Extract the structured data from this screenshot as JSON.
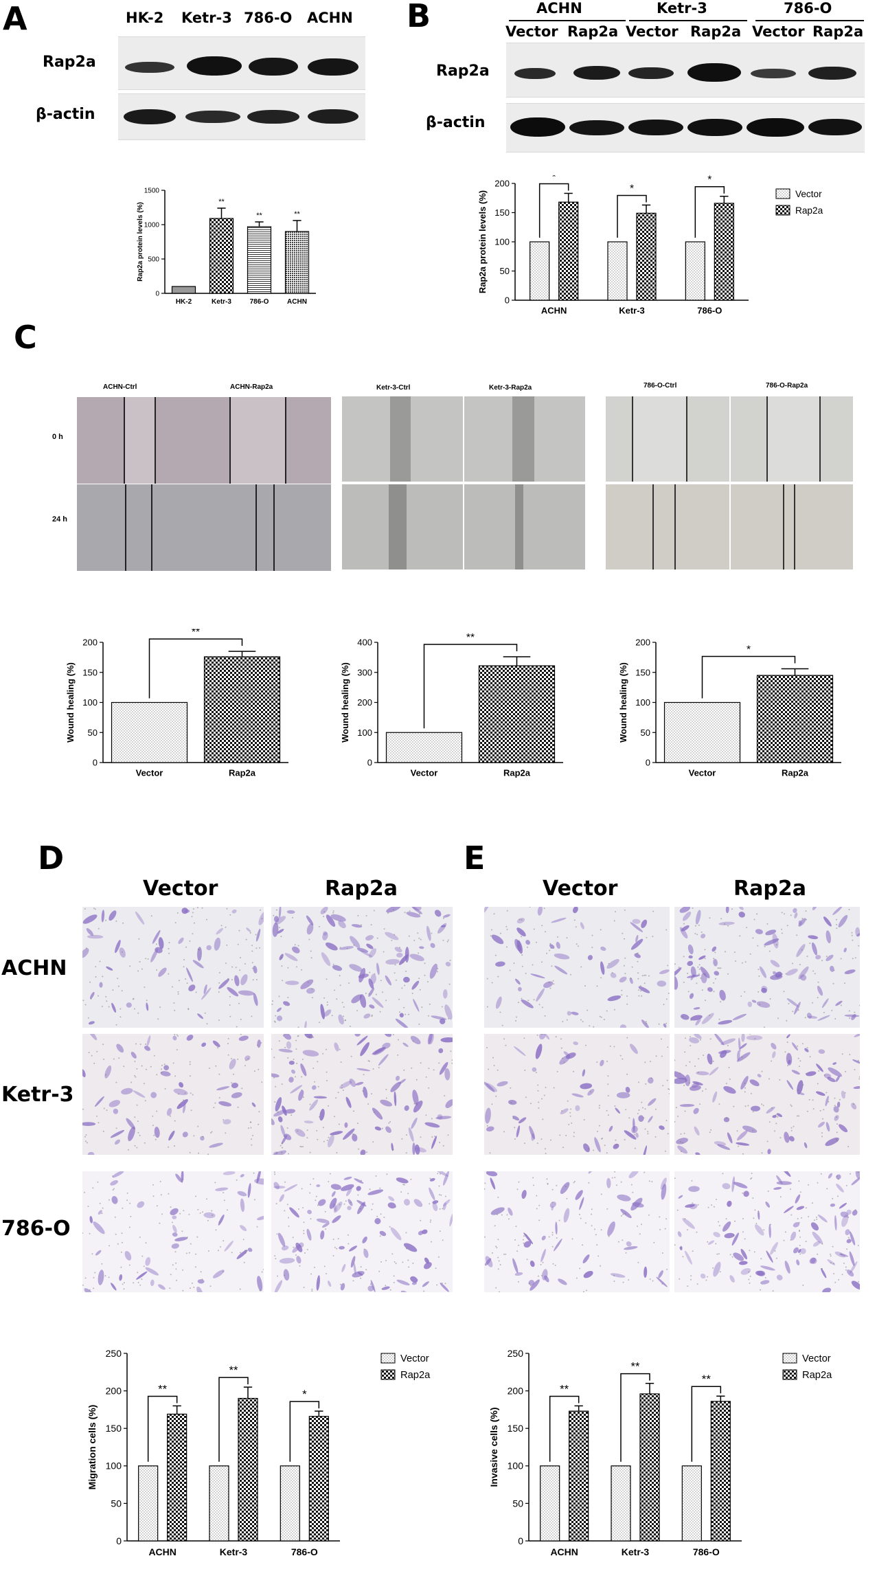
{
  "panels": {
    "a": "A",
    "b": "B",
    "c": "C",
    "d": "D",
    "e": "E"
  },
  "blot_a": {
    "lanes": [
      "HK-2",
      "Ketr-3",
      "786-O",
      "ACHN"
    ],
    "rows": [
      "Rap2a",
      "β-actin"
    ]
  },
  "blot_b": {
    "groups": [
      "ACHN",
      "Ketr-3",
      "786-O"
    ],
    "lanes": [
      "Vector",
      "Rap2a",
      "Vector",
      "Rap2a",
      "Vector",
      "Rap2a"
    ],
    "rows": [
      "Rap2a",
      "β-actin"
    ]
  },
  "wound": {
    "row_labels": [
      "0 h",
      "24 h"
    ],
    "titles": [
      "ACHN-Ctrl",
      "ACHN-Rap2a",
      "Ketr-3-Ctrl",
      "Ketr-3-Rap2a",
      "786-O-Ctrl",
      "786-O-Rap2a"
    ]
  },
  "transwell": {
    "cols": [
      "Vector",
      "Rap2a"
    ],
    "rows": [
      "ACHN",
      "Ketr-3",
      "786-O"
    ]
  },
  "colors": {
    "band": "#111111",
    "blot_bg": "#ececec",
    "stain": "#8a6fc4",
    "wound_ach": "#b4a8b1",
    "wound_ketr": "#c4c4c2",
    "wound_786": "#d2d2cf"
  },
  "chart_data": [
    {
      "id": "A",
      "type": "bar",
      "categories": [
        "HK-2",
        "Ketr-3",
        "786-O",
        "ACHN"
      ],
      "values": [
        100,
        1090,
        970,
        900
      ],
      "errors": [
        0,
        150,
        70,
        160
      ],
      "sig": [
        "",
        "**",
        "**",
        "**"
      ],
      "ylabel": "Rap2a protein levels (%)",
      "ylim": [
        0,
        1500
      ],
      "yticks": [
        0,
        500,
        1000,
        1500
      ],
      "patterns": [
        "solid",
        "checker",
        "hlines",
        "dense"
      ]
    },
    {
      "id": "B",
      "type": "bar",
      "categories": [
        "ACHN",
        "Ketr-3",
        "786-O"
      ],
      "series": [
        {
          "name": "Vector",
          "values": [
            100,
            100,
            100
          ],
          "errors": [
            0,
            0,
            0
          ]
        },
        {
          "name": "Rap2a",
          "values": [
            168,
            149,
            166
          ],
          "errors": [
            15,
            14,
            12
          ]
        }
      ],
      "sig": [
        "*",
        "*",
        "*"
      ],
      "ylabel": "Rap2a protein levels (%)",
      "ylim": [
        0,
        200
      ],
      "yticks": [
        0,
        50,
        100,
        150,
        200
      ],
      "legend": "top-right"
    },
    {
      "id": "C1",
      "type": "bar",
      "categories": [
        "Vector",
        "Rap2a"
      ],
      "values": [
        100,
        176
      ],
      "errors": [
        0,
        9
      ],
      "sig": "**",
      "ylabel": "Wound healing (%)",
      "ylim": [
        0,
        200
      ],
      "yticks": [
        0,
        50,
        100,
        150,
        200
      ]
    },
    {
      "id": "C2",
      "type": "bar",
      "categories": [
        "Vector",
        "Rap2a"
      ],
      "values": [
        100,
        322
      ],
      "errors": [
        0,
        30
      ],
      "sig": "**",
      "ylabel": "Wound healing (%)",
      "ylim": [
        0,
        400
      ],
      "yticks": [
        0,
        100,
        200,
        300,
        400
      ]
    },
    {
      "id": "C3",
      "type": "bar",
      "categories": [
        "Vector",
        "Rap2a"
      ],
      "values": [
        100,
        145
      ],
      "errors": [
        0,
        11
      ],
      "sig": "*",
      "ylabel": "Wound healing (%)",
      "ylim": [
        0,
        200
      ],
      "yticks": [
        0,
        50,
        100,
        150,
        200
      ]
    },
    {
      "id": "D",
      "type": "bar",
      "categories": [
        "ACHN",
        "Ketr-3",
        "786-O"
      ],
      "series": [
        {
          "name": "Vector",
          "values": [
            100,
            100,
            100
          ],
          "errors": [
            0,
            0,
            0
          ]
        },
        {
          "name": "Rap2a",
          "values": [
            169,
            190,
            166
          ],
          "errors": [
            11,
            15,
            7
          ]
        }
      ],
      "sig": [
        "**",
        "**",
        "*"
      ],
      "ylabel": "Migration cells (%)",
      "ylim": [
        0,
        250
      ],
      "yticks": [
        0,
        50,
        100,
        150,
        200,
        250
      ],
      "legend": "top-right"
    },
    {
      "id": "E",
      "type": "bar",
      "categories": [
        "ACHN",
        "Ketr-3",
        "786-O"
      ],
      "series": [
        {
          "name": "Vector",
          "values": [
            100,
            100,
            100
          ],
          "errors": [
            0,
            0,
            0
          ]
        },
        {
          "name": "Rap2a",
          "values": [
            173,
            196,
            186
          ],
          "errors": [
            7,
            14,
            7
          ]
        }
      ],
      "sig": [
        "**",
        "**",
        "**"
      ],
      "ylabel": "Invasive cells (%)",
      "ylim": [
        0,
        250
      ],
      "yticks": [
        0,
        50,
        100,
        150,
        200,
        250
      ],
      "legend": "top-right"
    }
  ]
}
